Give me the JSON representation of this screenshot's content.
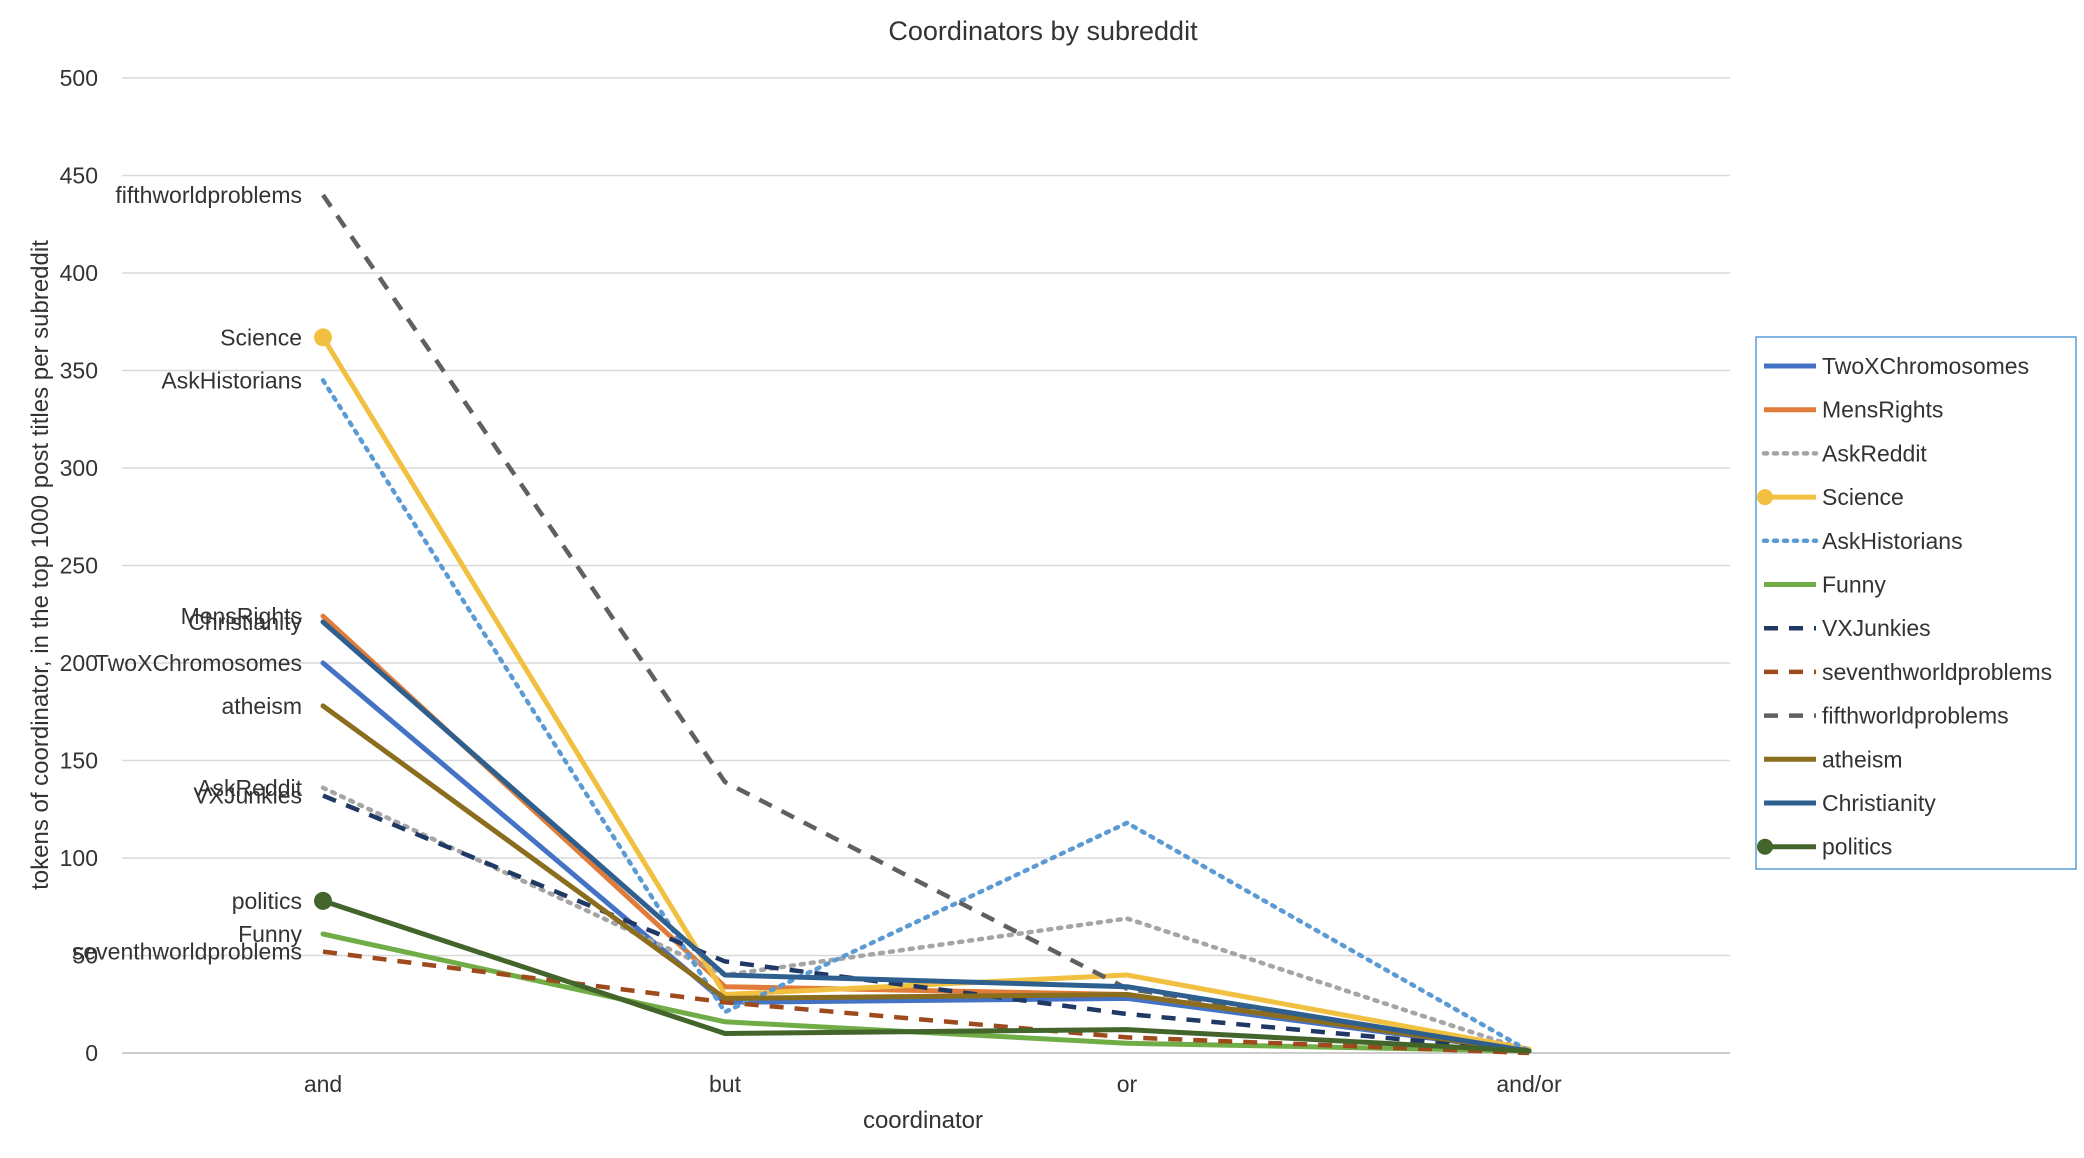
{
  "chart_data": {
    "type": "line",
    "title": "Coordinators by subreddit",
    "xlabel": "coordinator",
    "ylabel": "tokens of coordinator, in the top 1000 post titles per subreddit",
    "categories": [
      "and",
      "but",
      "or",
      "and/or"
    ],
    "ylim": [
      0,
      500
    ],
    "yticks": [
      0,
      50,
      100,
      150,
      200,
      250,
      300,
      350,
      400,
      450,
      500
    ],
    "grid": true,
    "legend_position": "right",
    "series": [
      {
        "name": "TwoXChromosomes",
        "values": [
          200,
          26,
          28,
          1
        ],
        "color": "#4472c4",
        "style": "solid",
        "marker": false
      },
      {
        "name": "MensRights",
        "values": [
          224,
          34,
          30,
          1
        ],
        "color": "#e07b39",
        "style": "solid",
        "marker": false
      },
      {
        "name": "AskReddit",
        "values": [
          136,
          40,
          69,
          1
        ],
        "color": "#a5a5a5",
        "style": "dotted",
        "marker": false
      },
      {
        "name": "Science",
        "values": [
          367,
          30,
          40,
          2
        ],
        "color": "#f2c040",
        "style": "solid",
        "marker": true
      },
      {
        "name": "AskHistorians",
        "values": [
          345,
          21,
          118,
          1
        ],
        "color": "#5b9bd5",
        "style": "dotted",
        "marker": false
      },
      {
        "name": "Funny",
        "values": [
          61,
          16,
          5,
          1
        ],
        "color": "#70ad47",
        "style": "solid",
        "marker": false
      },
      {
        "name": "VXJunkies",
        "values": [
          132,
          47,
          20,
          1
        ],
        "color": "#203864",
        "style": "dashed",
        "marker": false
      },
      {
        "name": "seventhworldproblems",
        "values": [
          52,
          26,
          8,
          0
        ],
        "color": "#9e4a1d",
        "style": "dashed",
        "marker": false
      },
      {
        "name": "fifthworldproblems",
        "values": [
          440,
          139,
          33,
          1
        ],
        "color": "#606060",
        "style": "dashed",
        "marker": false
      },
      {
        "name": "atheism",
        "values": [
          178,
          28,
          30,
          1
        ],
        "color": "#8b6d1e",
        "style": "solid",
        "marker": false
      },
      {
        "name": "Christianity",
        "values": [
          221,
          40,
          34,
          1
        ],
        "color": "#2e5f8f",
        "style": "solid",
        "marker": false
      },
      {
        "name": "politics",
        "values": [
          78,
          10,
          12,
          1
        ],
        "color": "#43652b",
        "style": "solid",
        "marker": true
      }
    ],
    "point_labels": [
      {
        "series": "fifthworldproblems",
        "text": "fifthworldproblems"
      },
      {
        "series": "Science",
        "text": "Science"
      },
      {
        "series": "AskHistorians",
        "text": "AskHistorians"
      },
      {
        "series": "MensRights",
        "text": "MensRights"
      },
      {
        "series": "Christianity",
        "text": "Christianity"
      },
      {
        "series": "TwoXChromosomes",
        "text": "TwoXChromosomes"
      },
      {
        "series": "atheism",
        "text": "atheism"
      },
      {
        "series": "AskReddit",
        "text": "AskReddit"
      },
      {
        "series": "VXJunkies",
        "text": "VXJunkies"
      },
      {
        "series": "politics",
        "text": "politics"
      },
      {
        "series": "Funny",
        "text": "Funny"
      },
      {
        "series": "seventhworldproblems",
        "text": "seventhworldproblems"
      }
    ]
  }
}
